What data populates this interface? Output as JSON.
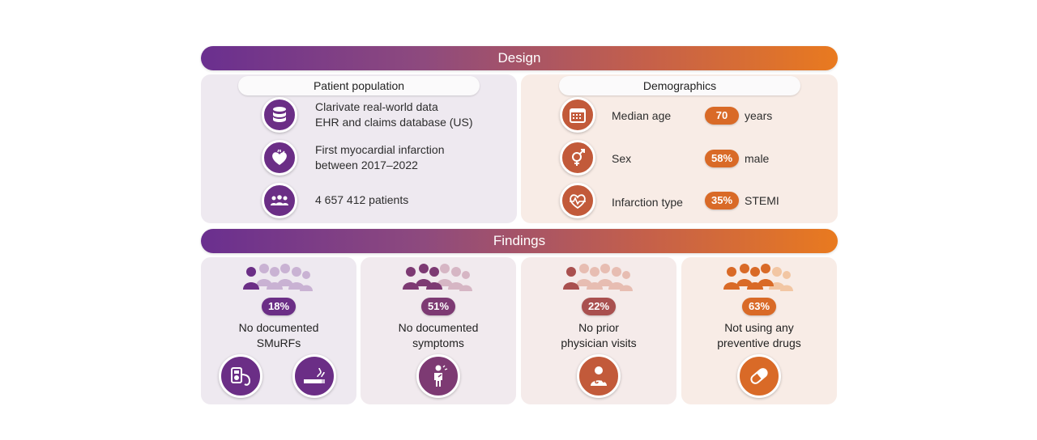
{
  "design": {
    "title": "Design"
  },
  "findings_banner": {
    "title": "Findings"
  },
  "colors": {
    "purple": "#6b2e86",
    "orange": "#d96a27",
    "mid1": "#7d3a73",
    "mid2": "#a9504f"
  },
  "patient_population": {
    "title": "Patient population",
    "items": [
      {
        "icon": "database-icon",
        "line1": "Clarivate real-world data",
        "line2": "EHR and claims database (US)"
      },
      {
        "icon": "heart-icon",
        "line1": "First myocardial infarction",
        "line2": "between 2017–2022"
      },
      {
        "icon": "people-group-icon",
        "line1": "4 657 412 patients",
        "line2": ""
      }
    ]
  },
  "demographics": {
    "title": "Demographics",
    "items": [
      {
        "icon": "calendar-icon",
        "label": "Median age",
        "value": "70",
        "unit": "years"
      },
      {
        "icon": "gender-icon",
        "label": "Sex",
        "value": "58%",
        "unit": "male"
      },
      {
        "icon": "ecg-heart-icon",
        "label": "Infarction type",
        "value": "35%",
        "unit": "STEMI"
      }
    ]
  },
  "findings": [
    {
      "value": "18%",
      "line1": "No documented",
      "line2": "SMuRFs",
      "icons": [
        "blood-pressure-monitor-icon",
        "cigarette-icon"
      ]
    },
    {
      "value": "51%",
      "line1": "No documented",
      "line2": "symptoms",
      "icons": [
        "chest-pain-person-icon"
      ]
    },
    {
      "value": "22%",
      "line1": "No prior",
      "line2": "physician visits",
      "icons": [
        "doctor-icon"
      ]
    },
    {
      "value": "63%",
      "line1": "Not using any",
      "line2": "preventive drugs",
      "icons": [
        "pill-icon"
      ]
    }
  ]
}
